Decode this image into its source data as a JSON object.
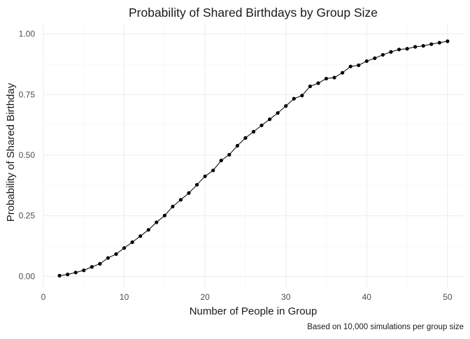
{
  "chart_data": {
    "type": "line",
    "title": "Probability of Shared Birthdays by Group Size",
    "xlabel": "Number of People in Group",
    "ylabel": "Probability of Shared Birthday",
    "caption": "Based on 10,000 simulations per group size",
    "xlim": [
      0,
      52
    ],
    "ylim": [
      0,
      1
    ],
    "x_ticks": [
      0,
      10,
      20,
      30,
      40,
      50
    ],
    "x_tick_labels": [
      "0",
      "10",
      "20",
      "30",
      "40",
      "50"
    ],
    "y_ticks": [
      0,
      0.25,
      0.5,
      0.75,
      1
    ],
    "y_tick_labels": [
      "0.00",
      "0.25",
      "0.50",
      "0.75",
      "1.00"
    ],
    "grid": true,
    "legend": "none",
    "colors": {
      "line": "#000000",
      "points": "#000000",
      "grid": "#ebebeb"
    },
    "series": [
      {
        "x": [
          2,
          3,
          4,
          5,
          6,
          7,
          8,
          9,
          10,
          11,
          12,
          13,
          14,
          15,
          16,
          17,
          18,
          19,
          20,
          21,
          22,
          23,
          24,
          25,
          26,
          27,
          28,
          29,
          30,
          31,
          32,
          33,
          34,
          35,
          36,
          37,
          38,
          39,
          40,
          41,
          42,
          43,
          44,
          45,
          46,
          47,
          48,
          49,
          50
        ],
        "values": [
          0.003,
          0.008,
          0.016,
          0.025,
          0.039,
          0.052,
          0.076,
          0.092,
          0.117,
          0.141,
          0.166,
          0.192,
          0.223,
          0.251,
          0.288,
          0.316,
          0.344,
          0.378,
          0.413,
          0.437,
          0.478,
          0.502,
          0.539,
          0.571,
          0.597,
          0.623,
          0.648,
          0.674,
          0.703,
          0.733,
          0.746,
          0.784,
          0.797,
          0.816,
          0.82,
          0.84,
          0.866,
          0.871,
          0.888,
          0.9,
          0.914,
          0.926,
          0.936,
          0.939,
          0.947,
          0.951,
          0.958,
          0.964,
          0.97
        ]
      }
    ]
  }
}
